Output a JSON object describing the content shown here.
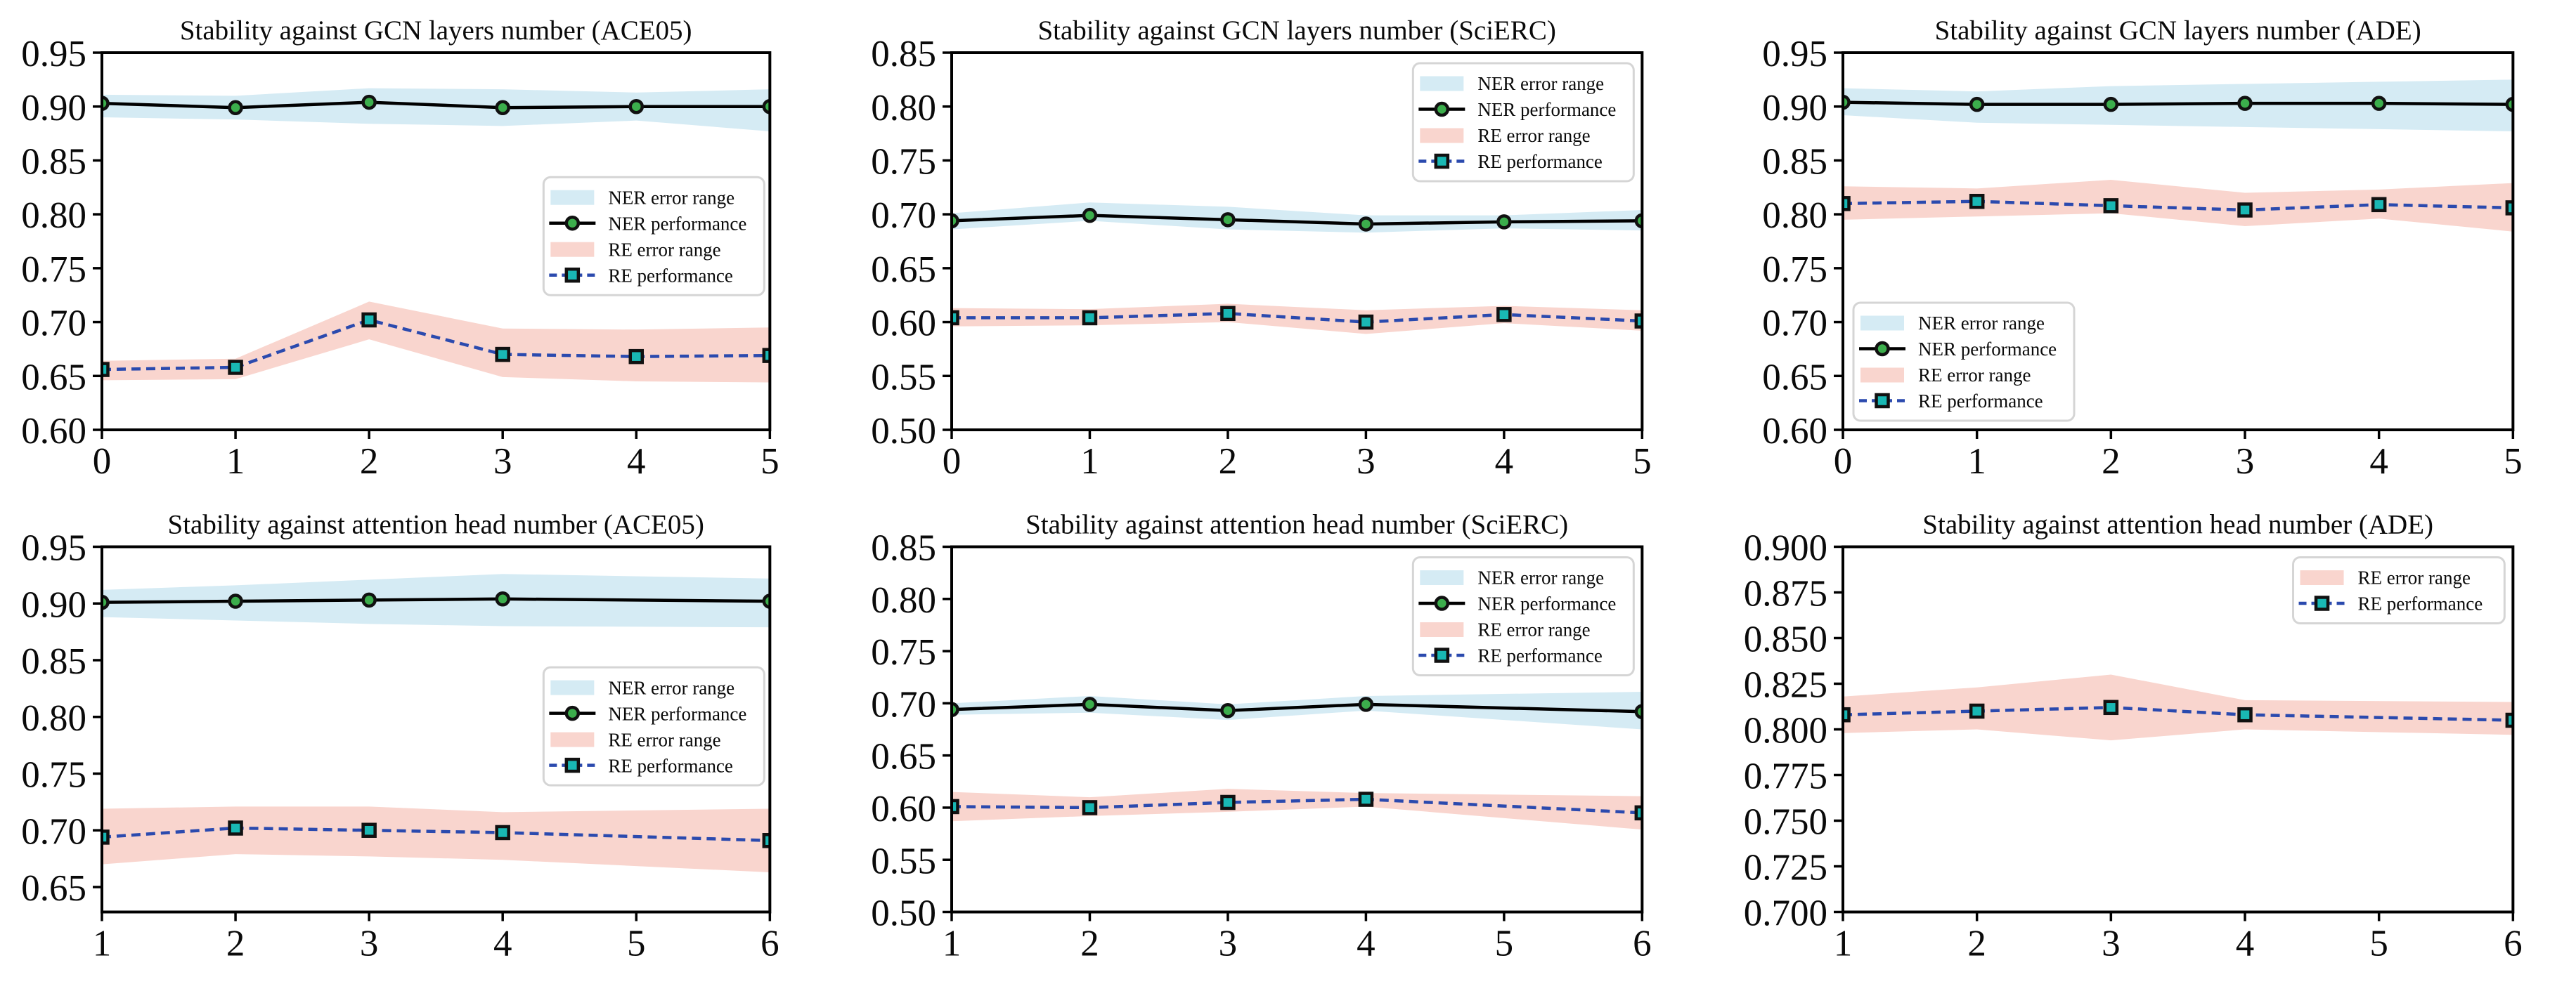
{
  "figure": {
    "description": "Six line charts with shaded error bands showing model stability",
    "background": "#ffffff"
  },
  "colors": {
    "ner_band": "#d5ebf4",
    "re_band": "#f9d5ce",
    "ner_line": "#000000",
    "ner_marker": "#3cae4c",
    "re_line": "#2b4aae",
    "re_marker": "#19b8b4",
    "marker_edge": "#111111",
    "legend_border": "#d5d5d5",
    "axis": "#000000"
  },
  "chart_data": [
    {
      "type": "line",
      "title": "Stability against GCN layers number (ACE05)",
      "x": [
        0,
        1,
        2,
        3,
        4,
        5
      ],
      "xtick_labels": [
        "0",
        "1",
        "2",
        "3",
        "4",
        "5"
      ],
      "xlim": [
        0,
        5
      ],
      "ylim": [
        0.6,
        0.95
      ],
      "ytick_labels": [
        "0.95",
        "0.90",
        "0.85",
        "0.80",
        "0.75",
        "0.70",
        "0.65",
        "0.60"
      ],
      "grid": false,
      "legend_position": "center right",
      "series": [
        {
          "name": "NER error range",
          "kind": "band",
          "fill": "#d5ebf4",
          "upper": [
            0.911,
            0.91,
            0.917,
            0.916,
            0.913,
            0.916
          ],
          "lower": [
            0.89,
            0.888,
            0.884,
            0.882,
            0.887,
            0.877
          ]
        },
        {
          "name": "NER performance",
          "kind": "line",
          "stroke": "#000000",
          "dash": "solid",
          "marker": "circle",
          "marker_fill": "#3cae4c",
          "values": [
            0.903,
            0.899,
            0.904,
            0.899,
            0.9,
            0.9
          ]
        },
        {
          "name": "RE error range",
          "kind": "band",
          "fill": "#f9d5ce",
          "upper": [
            0.664,
            0.666,
            0.719,
            0.694,
            0.693,
            0.695
          ],
          "lower": [
            0.646,
            0.647,
            0.684,
            0.649,
            0.645,
            0.644
          ]
        },
        {
          "name": "RE performance",
          "kind": "line",
          "stroke": "#2b4aae",
          "dash": "dashed",
          "marker": "square",
          "marker_fill": "#19b8b4",
          "values": [
            0.656,
            0.658,
            0.702,
            0.67,
            0.668,
            0.669
          ]
        }
      ]
    },
    {
      "type": "line",
      "title": "Stability against GCN layers number (SciERC)",
      "x": [
        0,
        1,
        2,
        3,
        4,
        5
      ],
      "xtick_labels": [
        "0",
        "1",
        "2",
        "3",
        "4",
        "5"
      ],
      "xlim": [
        0,
        5
      ],
      "ylim": [
        0.5,
        0.85
      ],
      "ytick_labels": [
        "0.85",
        "0.80",
        "0.75",
        "0.70",
        "0.65",
        "0.60",
        "0.55",
        "0.50"
      ],
      "grid": false,
      "legend_position": "upper right",
      "series": [
        {
          "name": "NER error range",
          "kind": "band",
          "fill": "#d5ebf4",
          "upper": [
            0.701,
            0.711,
            0.707,
            0.699,
            0.699,
            0.704
          ],
          "lower": [
            0.686,
            0.694,
            0.686,
            0.683,
            0.687,
            0.685
          ]
        },
        {
          "name": "NER performance",
          "kind": "line",
          "stroke": "#000000",
          "dash": "solid",
          "marker": "circle",
          "marker_fill": "#3cae4c",
          "values": [
            0.694,
            0.699,
            0.695,
            0.691,
            0.693,
            0.694
          ]
        },
        {
          "name": "RE error range",
          "kind": "band",
          "fill": "#f9d5ce",
          "upper": [
            0.613,
            0.612,
            0.617,
            0.611,
            0.615,
            0.611
          ],
          "lower": [
            0.596,
            0.597,
            0.6,
            0.589,
            0.599,
            0.592
          ]
        },
        {
          "name": "RE performance",
          "kind": "line",
          "stroke": "#2b4aae",
          "dash": "dashed",
          "marker": "square",
          "marker_fill": "#19b8b4",
          "values": [
            0.604,
            0.604,
            0.608,
            0.6,
            0.607,
            0.601
          ]
        }
      ]
    },
    {
      "type": "line",
      "title": "Stability against GCN layers number (ADE)",
      "x": [
        0,
        1,
        2,
        3,
        4,
        5
      ],
      "xtick_labels": [
        "0",
        "1",
        "2",
        "3",
        "4",
        "5"
      ],
      "xlim": [
        0,
        5
      ],
      "ylim": [
        0.6,
        0.95
      ],
      "ytick_labels": [
        "0.95",
        "0.90",
        "0.85",
        "0.80",
        "0.75",
        "0.70",
        "0.65",
        "0.60"
      ],
      "grid": false,
      "legend_position": "lower left",
      "series": [
        {
          "name": "NER error range",
          "kind": "band",
          "fill": "#d5ebf4",
          "upper": [
            0.917,
            0.914,
            0.919,
            0.921,
            0.923,
            0.925
          ],
          "lower": [
            0.892,
            0.885,
            0.883,
            0.881,
            0.879,
            0.877
          ]
        },
        {
          "name": "NER performance",
          "kind": "line",
          "stroke": "#000000",
          "dash": "solid",
          "marker": "circle",
          "marker_fill": "#3cae4c",
          "values": [
            0.904,
            0.902,
            0.902,
            0.903,
            0.903,
            0.902
          ]
        },
        {
          "name": "RE error range",
          "kind": "band",
          "fill": "#f9d5ce",
          "upper": [
            0.826,
            0.824,
            0.832,
            0.82,
            0.823,
            0.829
          ],
          "lower": [
            0.795,
            0.798,
            0.801,
            0.789,
            0.796,
            0.784
          ]
        },
        {
          "name": "RE performance",
          "kind": "line",
          "stroke": "#2b4aae",
          "dash": "dashed",
          "marker": "square",
          "marker_fill": "#19b8b4",
          "values": [
            0.81,
            0.812,
            0.808,
            0.804,
            0.809,
            0.806
          ]
        }
      ]
    },
    {
      "type": "line",
      "title": "Stability against attention head number (ACE05)",
      "x": [
        1,
        2,
        3,
        4,
        6
      ],
      "xtick_labels": [
        "1",
        "2",
        "3",
        "4",
        "5",
        "6"
      ],
      "xlim": [
        1,
        6
      ],
      "ylim": [
        0.628,
        0.95
      ],
      "ytick_labels": [
        "0.95",
        "0.90",
        "0.85",
        "0.80",
        "0.75",
        "0.70",
        "0.65"
      ],
      "grid": false,
      "legend_position": "center right",
      "series": [
        {
          "name": "NER error range",
          "kind": "band",
          "fill": "#d5ebf4",
          "upper": [
            0.912,
            0.916,
            0.921,
            0.926,
            0.922
          ],
          "lower": [
            0.888,
            0.885,
            0.882,
            0.88,
            0.879
          ]
        },
        {
          "name": "NER performance",
          "kind": "line",
          "stroke": "#000000",
          "dash": "solid",
          "marker": "circle",
          "marker_fill": "#3cae4c",
          "values": [
            0.901,
            0.902,
            0.903,
            0.904,
            0.902
          ]
        },
        {
          "name": "RE error range",
          "kind": "band",
          "fill": "#f9d5ce",
          "upper": [
            0.719,
            0.721,
            0.721,
            0.716,
            0.719
          ],
          "lower": [
            0.67,
            0.679,
            0.677,
            0.674,
            0.663
          ]
        },
        {
          "name": "RE performance",
          "kind": "line",
          "stroke": "#2b4aae",
          "dash": "dashed",
          "marker": "square",
          "marker_fill": "#19b8b4",
          "values": [
            0.694,
            0.702,
            0.7,
            0.698,
            0.691
          ]
        }
      ]
    },
    {
      "type": "line",
      "title": "Stability against attention head number (SciERC)",
      "x": [
        1,
        2,
        3,
        4,
        6
      ],
      "xtick_labels": [
        "1",
        "2",
        "3",
        "4",
        "5",
        "6"
      ],
      "xlim": [
        1,
        6
      ],
      "ylim": [
        0.5,
        0.85
      ],
      "ytick_labels": [
        "0.85",
        "0.80",
        "0.75",
        "0.70",
        "0.65",
        "0.60",
        "0.55",
        "0.50"
      ],
      "grid": false,
      "legend_position": "upper right",
      "series": [
        {
          "name": "NER error range",
          "kind": "band",
          "fill": "#d5ebf4",
          "upper": [
            0.7,
            0.707,
            0.699,
            0.707,
            0.711
          ],
          "lower": [
            0.689,
            0.691,
            0.684,
            0.693,
            0.675
          ]
        },
        {
          "name": "NER performance",
          "kind": "line",
          "stroke": "#000000",
          "dash": "solid",
          "marker": "circle",
          "marker_fill": "#3cae4c",
          "values": [
            0.694,
            0.699,
            0.693,
            0.699,
            0.692
          ]
        },
        {
          "name": "RE error range",
          "kind": "band",
          "fill": "#f9d5ce",
          "upper": [
            0.615,
            0.61,
            0.618,
            0.614,
            0.611
          ],
          "lower": [
            0.587,
            0.592,
            0.596,
            0.601,
            0.579
          ]
        },
        {
          "name": "RE performance",
          "kind": "line",
          "stroke": "#2b4aae",
          "dash": "dashed",
          "marker": "square",
          "marker_fill": "#19b8b4",
          "values": [
            0.601,
            0.6,
            0.605,
            0.608,
            0.595
          ]
        }
      ]
    },
    {
      "type": "line",
      "title": "Stability against attention head number (ADE)",
      "x": [
        1,
        2,
        3,
        4,
        6
      ],
      "xtick_labels": [
        "1",
        "2",
        "3",
        "4",
        "5",
        "6"
      ],
      "xlim": [
        1,
        6
      ],
      "ylim": [
        0.7,
        0.9
      ],
      "ytick_labels": [
        "0.900",
        "0.875",
        "0.850",
        "0.825",
        "0.800",
        "0.775",
        "0.750",
        "0.725",
        "0.700"
      ],
      "grid": false,
      "legend_position": "upper right",
      "series": [
        {
          "name": "RE error range",
          "kind": "band",
          "fill": "#f9d5ce",
          "upper": [
            0.818,
            0.823,
            0.83,
            0.816,
            0.815
          ],
          "lower": [
            0.798,
            0.8,
            0.794,
            0.8,
            0.797
          ]
        },
        {
          "name": "RE performance",
          "kind": "line",
          "stroke": "#2b4aae",
          "dash": "dashed",
          "marker": "square",
          "marker_fill": "#19b8b4",
          "values": [
            0.808,
            0.81,
            0.812,
            0.808,
            0.805
          ]
        }
      ]
    }
  ]
}
